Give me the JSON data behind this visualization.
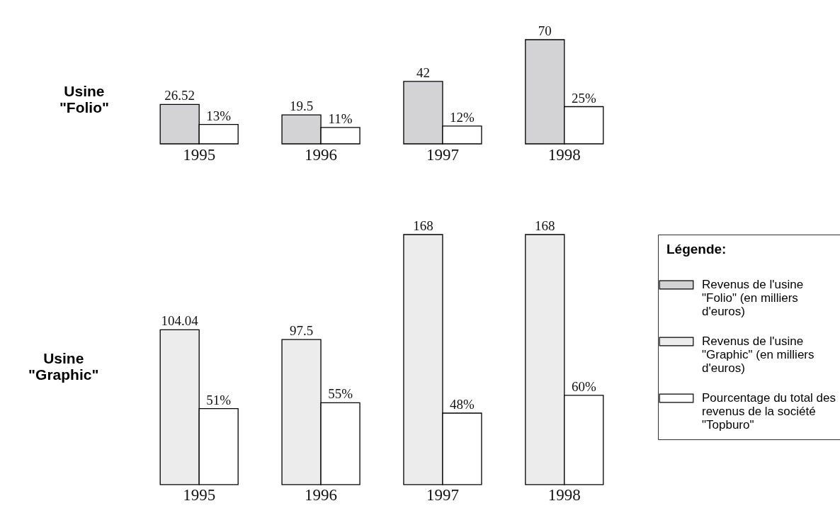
{
  "chart_data": [
    {
      "type": "bar",
      "title": "Usine \"Folio\"",
      "categories": [
        "1995",
        "1996",
        "1997",
        "1998"
      ],
      "data_labels": true,
      "tick_labels": "x",
      "series": [
        {
          "name": "Revenus de l'usine \"Folio\" (en milliers d'euros)",
          "color": "#d3d3d5",
          "values": [
            26.52,
            19.5,
            42,
            70
          ]
        },
        {
          "color": "#ffffff",
          "values": [
            13,
            11,
            12,
            25
          ],
          "value_labels": [
            "13%",
            "11%",
            "12%",
            "25%"
          ]
        }
      ]
    },
    {
      "type": "bar",
      "title": "Usine \"Graphic\"",
      "categories": [
        "1995",
        "1996",
        "1997",
        "1998"
      ],
      "data_labels": true,
      "tick_labels": "x",
      "legend": "right",
      "legend_title": "Légende:",
      "series": [
        {
          "name": "Revenus de l'usine \"Graphic\" (en milliers d'euros)",
          "color": "#ececec",
          "values": [
            104.04,
            97.5,
            168,
            168
          ]
        },
        {
          "name": "Pourcentage du total des revenus de la société \"Topburo\"",
          "color": "#ffffff",
          "values": [
            51,
            55,
            48,
            60
          ],
          "value_labels": [
            "51%",
            "55%",
            "48%",
            "60%"
          ]
        }
      ]
    }
  ]
}
